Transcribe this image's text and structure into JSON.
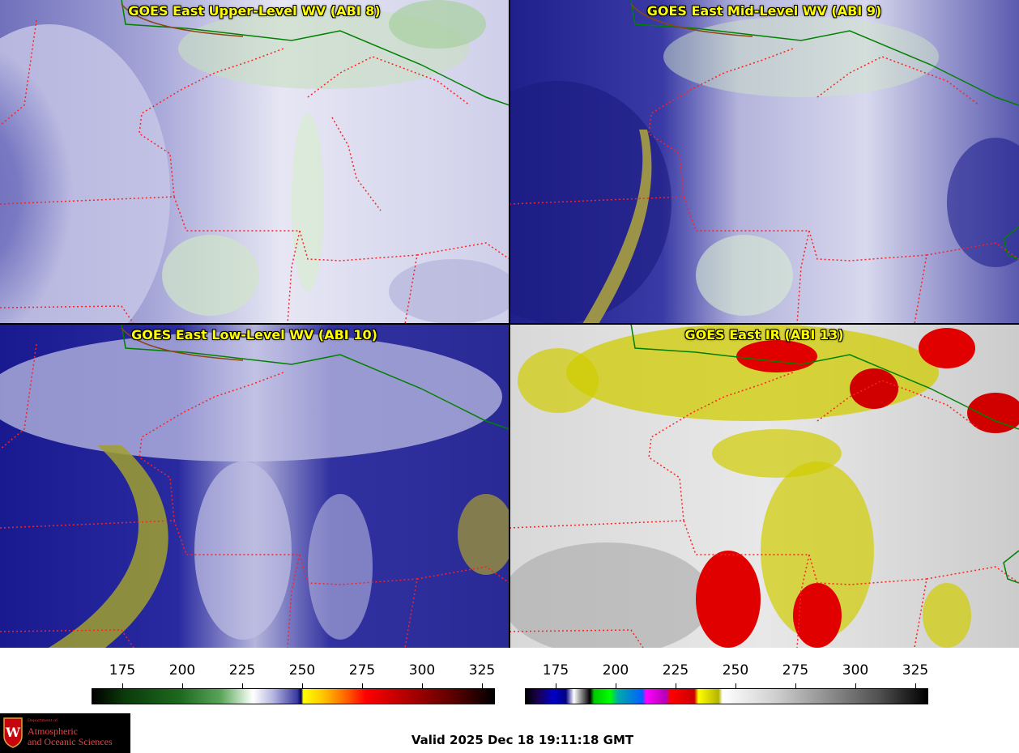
{
  "panels": [
    {
      "title": "GOES East Upper-Level WV (ABI 8)"
    },
    {
      "title": "GOES East Mid-Level WV (ABI 9)"
    },
    {
      "title": "GOES East Low-Level WV (ABI 10)"
    },
    {
      "title": "GOES East IR (ABI 13)"
    }
  ],
  "colorbar_left": {
    "ticks": [
      "175",
      "200",
      "225",
      "250",
      "275",
      "300",
      "325"
    ]
  },
  "colorbar_right": {
    "ticks": [
      "175",
      "200",
      "225",
      "250",
      "275",
      "300",
      "325"
    ]
  },
  "logo": {
    "dept_line1": "Department of",
    "name_line1": "Atmospheric",
    "name_line2": "and Oceanic Sciences"
  },
  "valid_time": "Valid 2025 Dec 18 19:11:18 GMT",
  "colors": {
    "title_text": "#ffff00",
    "state_borders": "#ff2020",
    "country_border": "#008000",
    "coastline": "#8b4513"
  }
}
